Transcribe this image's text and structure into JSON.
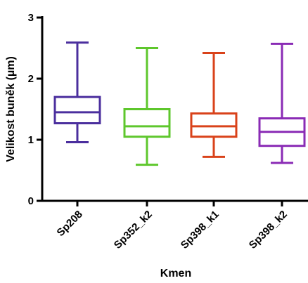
{
  "chart_data": {
    "type": "box",
    "xlabel": "Kmen",
    "ylabel": "Velikost buněk (µm)",
    "ylim": [
      0,
      3
    ],
    "yticks": [
      0,
      1,
      2,
      3
    ],
    "grid": false,
    "legend": "none",
    "categories": [
      "Sp208",
      "Sp352_k2",
      "Sp398_k1",
      "Sp398_k2"
    ],
    "boxes": [
      {
        "min": 0.96,
        "q1": 1.27,
        "median": 1.45,
        "q3": 1.7,
        "max": 2.59,
        "color": "#4b2f9e"
      },
      {
        "min": 0.59,
        "q1": 1.05,
        "median": 1.22,
        "q3": 1.5,
        "max": 2.5,
        "color": "#5ec72c"
      },
      {
        "min": 0.72,
        "q1": 1.05,
        "median": 1.22,
        "q3": 1.43,
        "max": 2.42,
        "color": "#d9421a"
      },
      {
        "min": 0.62,
        "q1": 0.9,
        "median": 1.13,
        "q3": 1.35,
        "max": 2.57,
        "color": "#8a2bb5"
      }
    ]
  }
}
